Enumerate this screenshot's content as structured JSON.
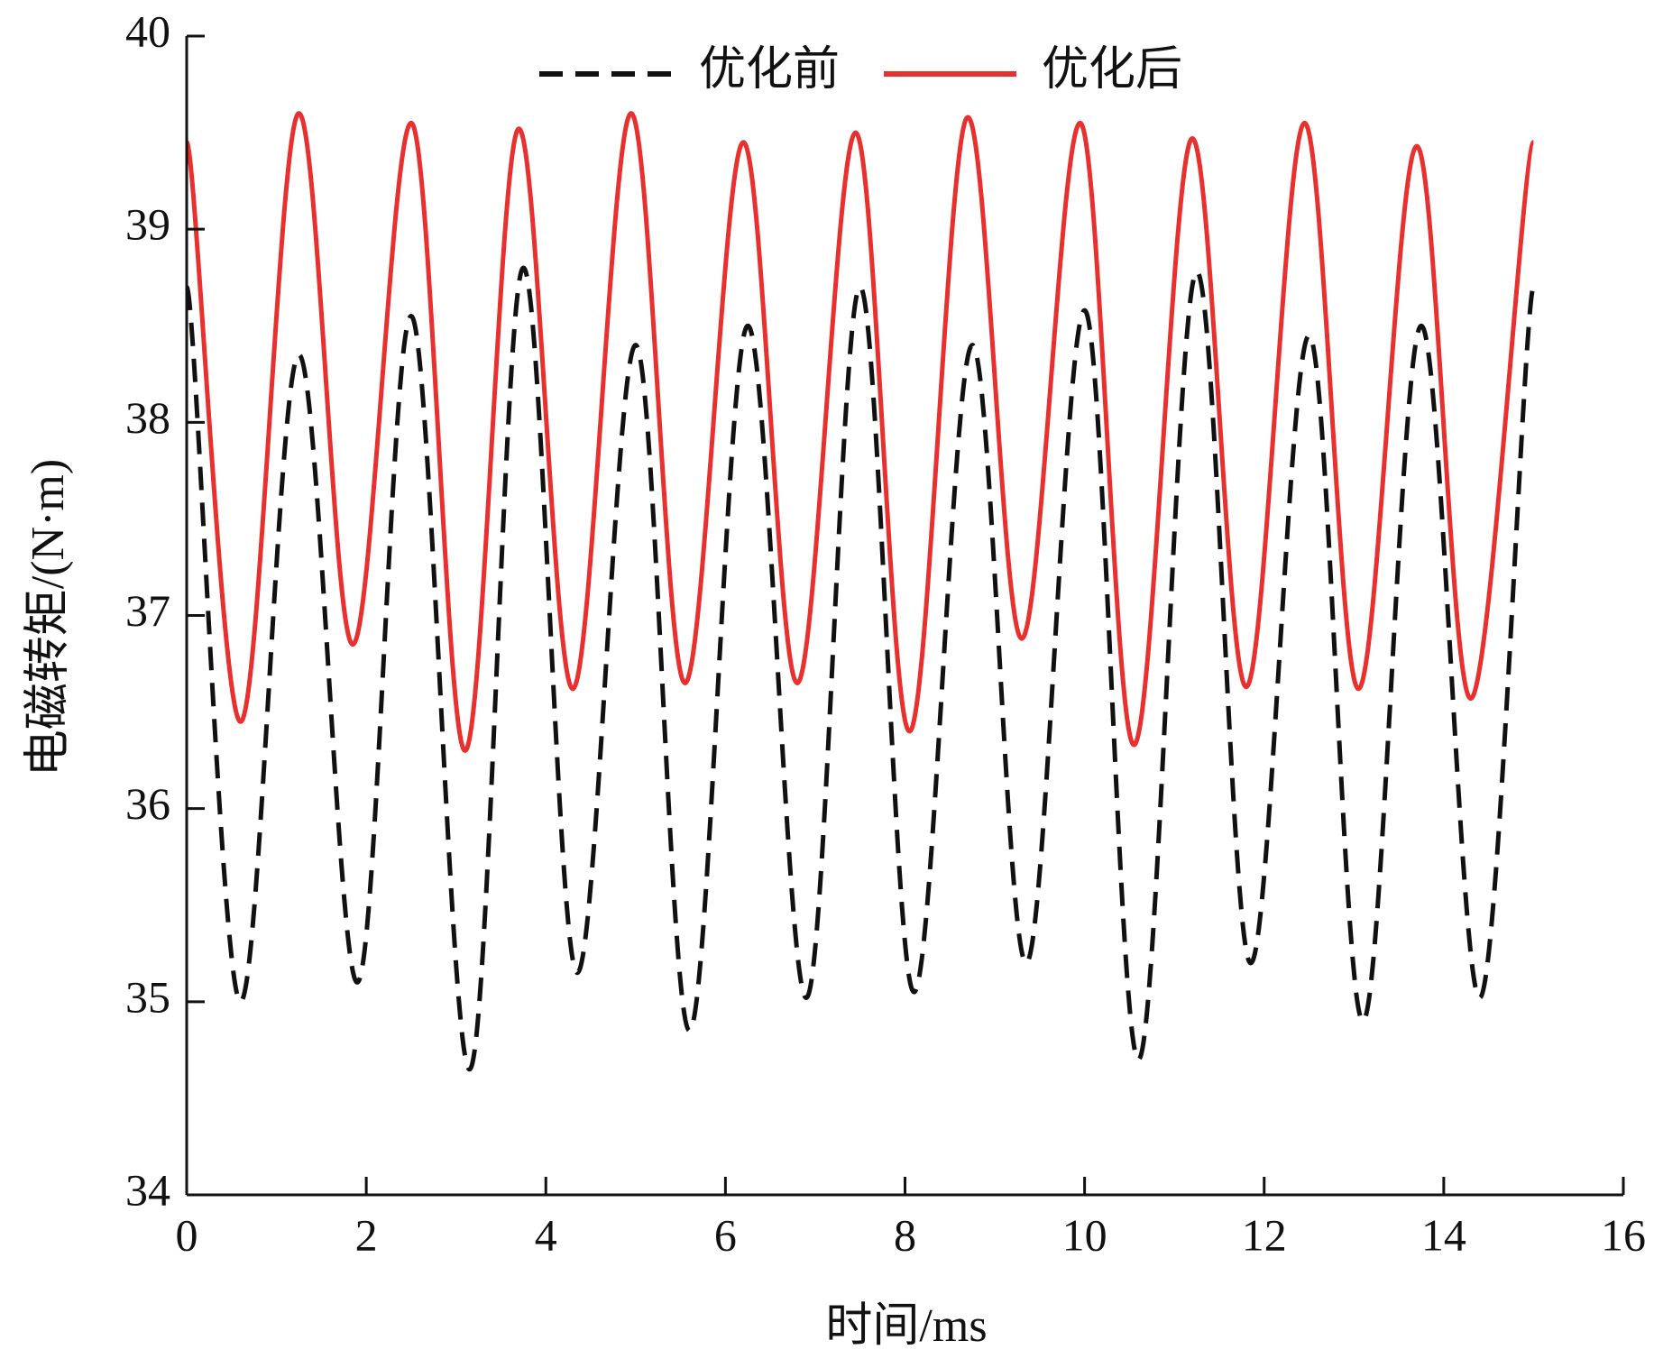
{
  "chart_data": {
    "type": "line",
    "xlabel": "时间/ms",
    "ylabel": "电磁转矩/(N·m)",
    "xlim": [
      0,
      16
    ],
    "ylim": [
      34,
      40
    ],
    "xticks": [
      "0",
      "2",
      "4",
      "6",
      "8",
      "10",
      "12",
      "14",
      "16"
    ],
    "yticks": [
      "34",
      "35",
      "36",
      "37",
      "38",
      "39",
      "40"
    ],
    "grid": false,
    "legend_position": "top-center",
    "series": [
      {
        "name": "优化前",
        "color": "#111111",
        "style": "dashed",
        "x": [
          0,
          0.6,
          1.25,
          1.9,
          2.5,
          3.15,
          3.75,
          4.35,
          5.0,
          5.6,
          6.25,
          6.9,
          7.5,
          8.1,
          8.75,
          9.35,
          10.0,
          10.6,
          11.25,
          11.85,
          12.5,
          13.1,
          13.75,
          14.4,
          15.0
        ],
        "y": [
          38.7,
          35.0,
          38.35,
          35.1,
          38.55,
          34.65,
          38.8,
          35.15,
          38.4,
          34.85,
          38.5,
          35.02,
          38.7,
          35.05,
          38.4,
          35.2,
          38.58,
          34.7,
          38.78,
          35.2,
          38.45,
          34.9,
          38.5,
          35.02,
          38.7
        ]
      },
      {
        "name": "优化后",
        "color": "#e8302e",
        "style": "solid",
        "x": [
          0,
          0.6,
          1.25,
          1.85,
          2.5,
          3.1,
          3.7,
          4.3,
          4.95,
          5.55,
          6.2,
          6.8,
          7.45,
          8.05,
          8.7,
          9.3,
          9.95,
          10.55,
          11.2,
          11.8,
          12.45,
          13.05,
          13.7,
          14.3,
          15.0
        ],
        "y": [
          39.45,
          36.45,
          39.6,
          36.85,
          39.55,
          36.3,
          39.52,
          36.62,
          39.6,
          36.65,
          39.45,
          36.65,
          39.5,
          36.4,
          39.58,
          36.88,
          39.55,
          36.33,
          39.47,
          36.63,
          39.55,
          36.62,
          39.43,
          36.57,
          39.45
        ]
      }
    ]
  }
}
